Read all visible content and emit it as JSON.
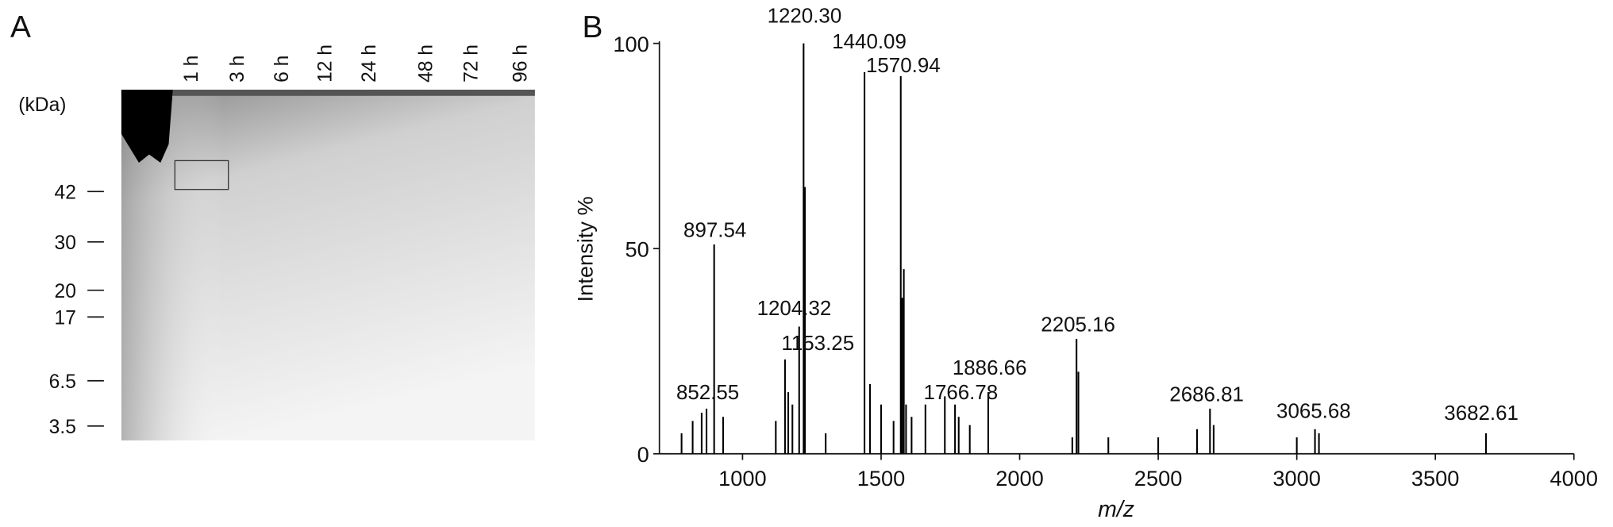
{
  "panel_a": {
    "panel_label": "A",
    "unit_label": "(kDa)",
    "lanes": [
      "1 h",
      "3 h",
      "6 h",
      "12 h",
      "24 h",
      "48 h",
      "72 h",
      "96 h"
    ],
    "markers": [
      {
        "value": 42,
        "label": "42"
      },
      {
        "value": 30,
        "label": "30"
      },
      {
        "value": 20,
        "label": "20"
      },
      {
        "value": 17,
        "label": "17"
      },
      {
        "value": 6.5,
        "label": "6.5"
      },
      {
        "value": 3.5,
        "label": "3.5"
      }
    ]
  },
  "chart_data": {
    "type": "spectrum",
    "panel_label": "B",
    "x_label": "m/z",
    "y_label": "Intensity %",
    "color": "#000000",
    "xlim": [
      700,
      4000
    ],
    "ylim": [
      0,
      100
    ],
    "xticks": [
      1000,
      1500,
      2000,
      2500,
      3000,
      3500,
      4000
    ],
    "yticks": [
      0,
      50,
      100
    ],
    "x": [
      780,
      820,
      852.55,
      870,
      897.54,
      930,
      1120,
      1153.25,
      1165,
      1180,
      1204.32,
      1220.3,
      1225,
      1300,
      1440.09,
      1460,
      1500,
      1545,
      1570.94,
      1576,
      1582,
      1590,
      1610,
      1660,
      1730,
      1766.78,
      1780,
      1820,
      1886.66,
      2190,
      2205.16,
      2212,
      2320,
      2500,
      2640,
      2686.81,
      2700,
      3000,
      3065.68,
      3080,
      3682.61
    ],
    "values": [
      5,
      8,
      10,
      11,
      51,
      9,
      8,
      23,
      15,
      12,
      31,
      100,
      65,
      5,
      93,
      17,
      12,
      8,
      92,
      38,
      45,
      12,
      9,
      12,
      14,
      12,
      9,
      7,
      15,
      4,
      28,
      20,
      4,
      4,
      6,
      11,
      7,
      4,
      6,
      5,
      5
    ],
    "annotations": [
      {
        "x": 1220.3,
        "text": "1220.30"
      },
      {
        "x": 1440.09,
        "text": "1440.09"
      },
      {
        "x": 1570.94,
        "text": "1570.94"
      },
      {
        "x": 897.54,
        "text": "897.54"
      },
      {
        "x": 1204.32,
        "text": "1204.32"
      },
      {
        "x": 1153.25,
        "text": "1153.25"
      },
      {
        "x": 852.55,
        "text": "852.55"
      },
      {
        "x": 1766.78,
        "text": "1766.78"
      },
      {
        "x": 1886.66,
        "text": "1886.66"
      },
      {
        "x": 2205.16,
        "text": "2205.16"
      },
      {
        "x": 2686.81,
        "text": "2686.81"
      },
      {
        "x": 3065.68,
        "text": "3065.68"
      },
      {
        "x": 3682.61,
        "text": "3682.61"
      }
    ]
  }
}
